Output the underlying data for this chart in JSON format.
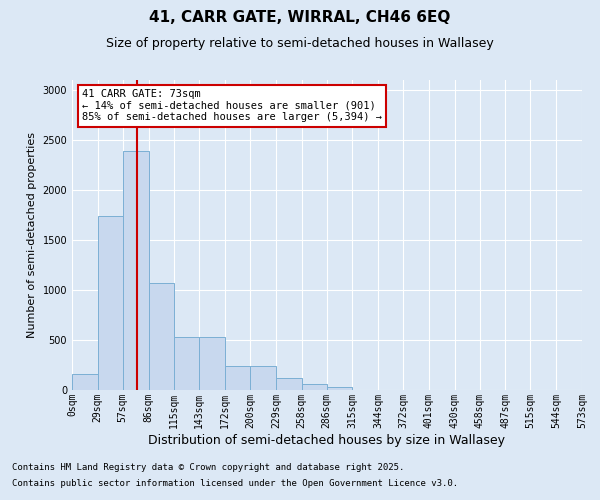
{
  "title_line1": "41, CARR GATE, WIRRAL, CH46 6EQ",
  "title_line2": "Size of property relative to semi-detached houses in Wallasey",
  "xlabel": "Distribution of semi-detached houses by size in Wallasey",
  "ylabel": "Number of semi-detached properties",
  "annotation_title": "41 CARR GATE: 73sqm",
  "annotation_line2": "← 14% of semi-detached houses are smaller (901)",
  "annotation_line3": "85% of semi-detached houses are larger (5,394) →",
  "footer_line1": "Contains HM Land Registry data © Crown copyright and database right 2025.",
  "footer_line2": "Contains public sector information licensed under the Open Government Licence v3.0.",
  "bar_color": "#c8d8ee",
  "bar_edge_color": "#7bafd4",
  "background_color": "#dce8f5",
  "fig_background": "#dce8f5",
  "vline_x": 73,
  "vline_color": "#cc0000",
  "bin_edges": [
    0,
    29,
    57,
    86,
    115,
    143,
    172,
    200,
    229,
    258,
    286,
    315,
    344,
    372,
    401,
    430,
    458,
    487,
    515,
    544,
    573
  ],
  "bar_heights": [
    160,
    1740,
    2390,
    1070,
    530,
    530,
    240,
    240,
    120,
    60,
    30,
    5,
    0,
    0,
    0,
    0,
    0,
    0,
    0,
    0
  ],
  "ylim": [
    0,
    3100
  ],
  "yticks": [
    0,
    500,
    1000,
    1500,
    2000,
    2500,
    3000
  ],
  "annotation_box_color": "#ffffff",
  "annotation_box_edge": "#cc0000",
  "title_fontsize": 11,
  "subtitle_fontsize": 9,
  "ylabel_fontsize": 8,
  "xlabel_fontsize": 9,
  "tick_fontsize": 7,
  "footer_fontsize": 6.5,
  "annot_fontsize": 7.5
}
